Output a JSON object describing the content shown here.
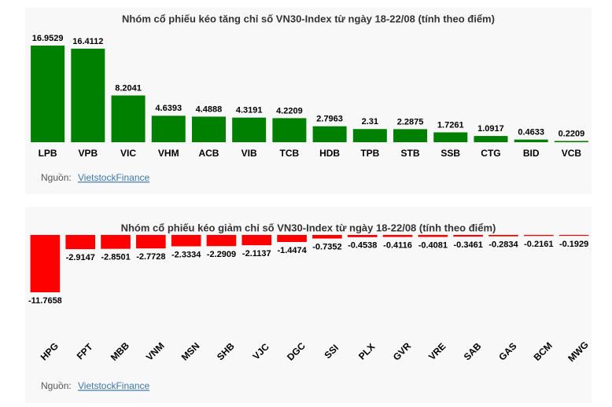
{
  "chart_data": [
    {
      "type": "bar",
      "title": "Nhóm cổ phiếu kéo tăng chỉ số VN30-Index từ ngày 18-22/08 (tính theo điểm)",
      "categories": [
        "LPB",
        "VPB",
        "VIC",
        "VHM",
        "ACB",
        "VIB",
        "TCB",
        "HDB",
        "TPB",
        "STB",
        "SSB",
        "CTG",
        "BID",
        "VCB"
      ],
      "values": [
        16.9529,
        16.4112,
        8.2041,
        4.6393,
        4.4888,
        4.3191,
        4.2209,
        2.7963,
        2.31,
        2.2875,
        1.7261,
        1.0917,
        0.4633,
        0.2209
      ],
      "color": "#008000",
      "source_label": "Nguồn:",
      "source": "VietstockFinance"
    },
    {
      "type": "bar",
      "title": "Nhóm cổ phiếu kéo giảm chỉ số VN30-Index từ ngày 18-22/08 (tính theo điểm)",
      "categories": [
        "HPG",
        "FPT",
        "MBB",
        "VNM",
        "MSN",
        "SHB",
        "VJC",
        "DGC",
        "SSI",
        "PLX",
        "GVR",
        "VRE",
        "SAB",
        "GAS",
        "BCM",
        "MWG"
      ],
      "values": [
        -11.7658,
        -2.9147,
        -2.8501,
        -2.7728,
        -2.3334,
        -2.2909,
        -2.1137,
        -1.4474,
        -0.7352,
        -0.4538,
        -0.4116,
        -0.4081,
        -0.3461,
        -0.2834,
        -0.2161,
        -0.1929
      ],
      "color": "#ff0000",
      "source_label": "Nguồn:",
      "source": "VietstockFinance"
    }
  ]
}
